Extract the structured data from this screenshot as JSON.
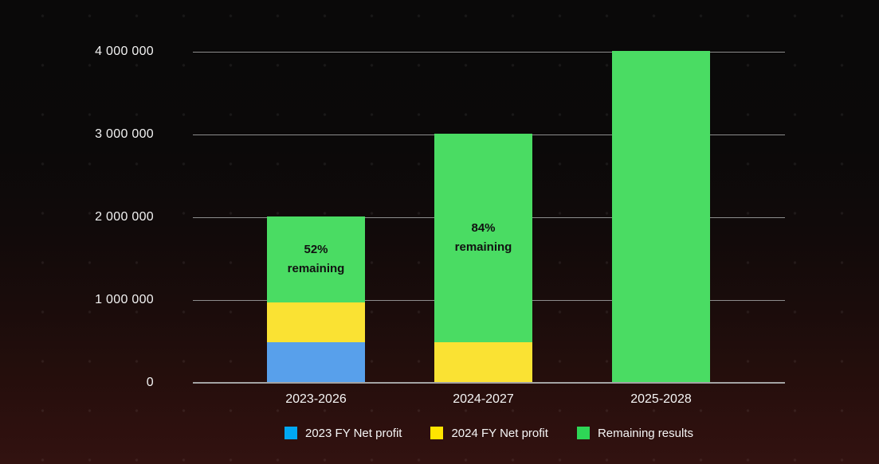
{
  "colors": {
    "background_top": "#0a0909",
    "background_bottom": "#321210",
    "gridline": "#8d8d8d",
    "axis_line": "#a3a3a3",
    "tick_text": "#f2f2f2",
    "annotation_text": "#111111"
  },
  "chart_data": {
    "type": "bar",
    "stacked": true,
    "title": "",
    "xlabel": "",
    "ylabel": "",
    "categories": [
      "2023-2026",
      "2024-2027",
      "2025-2028"
    ],
    "series": [
      {
        "name": "2023 FY Net profit",
        "bar_color": "#58a0eb",
        "legend_color": "#00a7f2",
        "values": [
          480000,
          0,
          0
        ]
      },
      {
        "name": "2024 FY Net profit",
        "bar_color": "#fae233",
        "legend_color": "#ffe500",
        "values": [
          480000,
          480000,
          0
        ]
      },
      {
        "name": "Remaining results",
        "bar_color": "#4adc63",
        "legend_color": "#2ed656",
        "values": [
          1040000,
          2520000,
          4000000
        ]
      }
    ],
    "totals": [
      2000000,
      3000000,
      4000000
    ],
    "annotations": [
      {
        "category": "2023-2026",
        "line1": "52%",
        "line2": "remaining"
      },
      {
        "category": "2024-2027",
        "line1": "84%",
        "line2": "remaining"
      },
      {
        "category": "2025-2028",
        "line1": "",
        "line2": ""
      }
    ],
    "yticks": [
      {
        "value": 0,
        "label": "0"
      },
      {
        "value": 1000000,
        "label": "1 000 000"
      },
      {
        "value": 2000000,
        "label": "2 000 000"
      },
      {
        "value": 3000000,
        "label": "3 000 000"
      },
      {
        "value": 4000000,
        "label": "4 000 000"
      }
    ],
    "ylim": [
      0,
      4000000
    ],
    "grid": true,
    "legend_position": "bottom"
  }
}
